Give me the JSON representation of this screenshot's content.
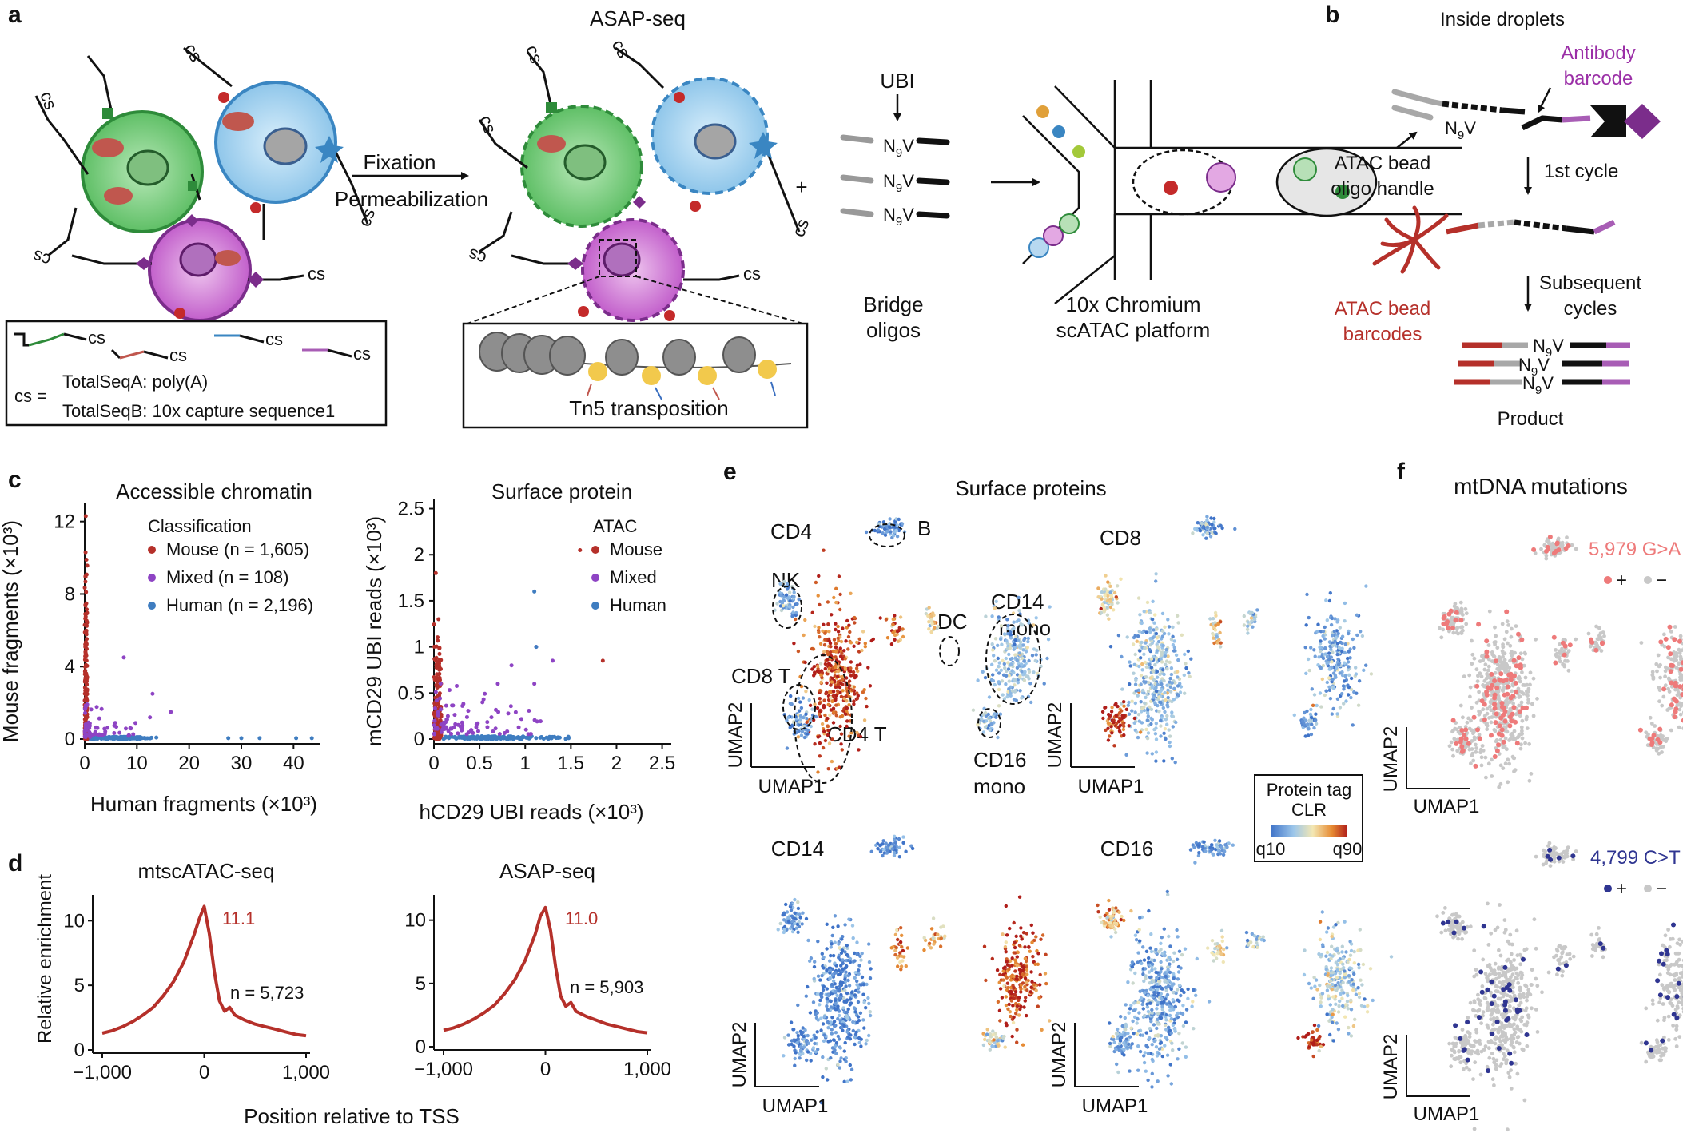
{
  "panel_letters": [
    "a",
    "b",
    "c",
    "d",
    "e",
    "f"
  ],
  "panel_a": {
    "title": "ASAP-seq",
    "arrow_label_1": "Fixation",
    "arrow_label_2": "Permeabilization",
    "cs_label": "cs",
    "plus": "+",
    "ubi_label": "UBI",
    "n9v": "N",
    "n9v_sub": "9",
    "n9v_tail": "V",
    "bridge_label_1": "Bridge",
    "bridge_label_2": "oligos",
    "chromium_label_1": "10x Chromium",
    "chromium_label_2": "scATAC platform",
    "legend_cs_eq": "cs =",
    "legend_line1": "TotalSeqA: poly(A)",
    "legend_line2": "TotalSeqB: 10x capture sequence1",
    "tn5_label": "Tn5 transposition"
  },
  "panel_b": {
    "title": "Inside droplets",
    "antibody_barcode_1": "Antibody",
    "antibody_barcode_2": "barcode",
    "atac_handle_1": "ATAC bead",
    "atac_handle_2": "oligo handle",
    "first_cycle": "1st cycle",
    "atac_barcodes_1": "ATAC bead",
    "atac_barcodes_2": "barcodes",
    "subsequent_1": "Subsequent",
    "subsequent_2": "cycles",
    "product": "Product"
  },
  "chart_data": [
    {
      "type": "scatter",
      "title": "Accessible chromatin",
      "xlabel": "Human fragments (×10³)",
      "ylabel": "Mouse fragments (×10³)",
      "xlim": [
        0,
        45
      ],
      "ylim": [
        0,
        13
      ],
      "xticks": [
        "0",
        "10",
        "20",
        "30",
        "40"
      ],
      "yticks": [
        "0",
        "4",
        "8",
        "12"
      ],
      "legend_title": "Classification",
      "legend_position": "top-right",
      "series": [
        {
          "name": "Mouse (n = 1,605)",
          "color": "#b5302a"
        },
        {
          "name": "Mixed (n = 108)",
          "color": "#8e44c4"
        },
        {
          "name": "Human (n = 2,196)",
          "color": "#3f7dc0"
        }
      ]
    },
    {
      "type": "scatter",
      "title": "Surface protein",
      "xlabel": "hCD29 UBI reads (×10³)",
      "ylabel": "mCD29 UBI reads (×10³)",
      "xlim": [
        0,
        2.6
      ],
      "ylim": [
        0,
        2.6
      ],
      "xticks": [
        "0",
        "0.5",
        "1",
        "1.5",
        "2",
        "2.5"
      ],
      "yticks": [
        "0",
        "0.5",
        "1",
        "1.5",
        "2",
        "2.5"
      ],
      "legend_title": "ATAC",
      "legend_position": "top-right",
      "series": [
        {
          "name": "Mouse",
          "color": "#b5302a"
        },
        {
          "name": "Mixed",
          "color": "#8e44c4"
        },
        {
          "name": "Human",
          "color": "#3f7dc0"
        }
      ]
    },
    {
      "type": "line",
      "title": "mtscATAC-seq",
      "ylabel": "Relative enrichment",
      "xticks": [
        "−1,000",
        "0",
        "1,000"
      ],
      "yticks": [
        "0",
        "5",
        "10"
      ],
      "x": [
        -1000,
        -900,
        -800,
        -700,
        -600,
        -500,
        -400,
        -300,
        -200,
        -100,
        -50,
        0,
        50,
        100,
        150,
        200,
        250,
        300,
        400,
        500,
        600,
        700,
        800,
        900,
        1000
      ],
      "y": [
        1.3,
        1.5,
        1.8,
        2.2,
        2.7,
        3.3,
        4.2,
        5.3,
        6.8,
        8.9,
        10.1,
        11.1,
        9.0,
        6.0,
        3.8,
        3.0,
        3.3,
        2.7,
        2.3,
        2.0,
        1.8,
        1.6,
        1.4,
        1.2,
        1.1
      ],
      "peak_label": "11.1",
      "n_label": "n = 5,723",
      "color": "#b5302a"
    },
    {
      "type": "line",
      "title": "ASAP-seq",
      "xticks": [
        "−1,000",
        "0",
        "1,000"
      ],
      "yticks": [
        "0",
        "5",
        "10"
      ],
      "x": [
        -1000,
        -900,
        -800,
        -700,
        -600,
        -500,
        -400,
        -300,
        -200,
        -100,
        -50,
        0,
        50,
        100,
        150,
        200,
        250,
        300,
        400,
        500,
        600,
        700,
        800,
        900,
        1000
      ],
      "y": [
        1.3,
        1.5,
        1.8,
        2.2,
        2.7,
        3.3,
        4.2,
        5.3,
        6.8,
        8.9,
        10.3,
        11.0,
        9.2,
        6.3,
        4.0,
        3.2,
        3.5,
        2.8,
        2.4,
        2.1,
        1.8,
        1.6,
        1.4,
        1.2,
        1.1
      ],
      "peak_label": "11.0",
      "n_label": "n = 5,903",
      "color": "#b5302a"
    }
  ],
  "panel_d": {
    "shared_xlabel": "Position relative to TSS"
  },
  "panel_e": {
    "title": "Surface proteins",
    "subplots": [
      "CD4",
      "CD8",
      "CD14",
      "CD16"
    ],
    "axis_x": "UMAP1",
    "axis_y": "UMAP2",
    "clusters": [
      "B",
      "NK",
      "DC",
      "CD14",
      "mono",
      "CD8 T",
      "CD4 T",
      "CD16",
      "mono"
    ],
    "colorbar_title_1": "Protein tag",
    "colorbar_title_2": "CLR",
    "colorbar_min": "q10",
    "colorbar_max": "q90",
    "colors": {
      "low": "#3f73c8",
      "high": "#c0271f"
    }
  },
  "panel_f": {
    "title": "mtDNA mutations",
    "mut1": "5,979 G>A",
    "mut2": "4,799 C>T",
    "plus": "+",
    "minus": "−",
    "axis_x": "UMAP1",
    "axis_y": "UMAP2",
    "colors": {
      "mut1": "#ee7a7a",
      "mut2": "#2f3591",
      "bg": "#c8c8c8"
    }
  }
}
